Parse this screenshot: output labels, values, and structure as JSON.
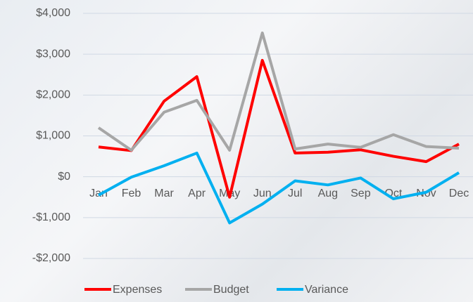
{
  "chart_data": {
    "type": "line",
    "categories": [
      "Jan",
      "Feb",
      "Mar",
      "Apr",
      "May",
      "Jun",
      "Jul",
      "Aug",
      "Sep",
      "Oct",
      "Nov",
      "Dec"
    ],
    "series": [
      {
        "name": "Expenses",
        "color": "#ff0000",
        "values": [
          730,
          640,
          1850,
          2450,
          -500,
          2850,
          580,
          600,
          660,
          500,
          370,
          800
        ]
      },
      {
        "name": "Budget",
        "color": "#a6a6a6",
        "values": [
          1200,
          650,
          1580,
          1870,
          650,
          3520,
          680,
          800,
          720,
          1030,
          740,
          700
        ]
      },
      {
        "name": "Variance",
        "color": "#00b0f0",
        "values": [
          -450,
          -10,
          270,
          580,
          -1130,
          -670,
          -100,
          -200,
          -30,
          -540,
          -380,
          100
        ]
      }
    ],
    "ylim": [
      -2000,
      4000
    ],
    "yticks": [
      {
        "value": -2000,
        "label": "-$2,000"
      },
      {
        "value": -1000,
        "label": "-$1,000"
      },
      {
        "value": 0,
        "label": "$0"
      },
      {
        "value": 1000,
        "label": "$1,000"
      },
      {
        "value": 2000,
        "label": "$2,000"
      },
      {
        "value": 3000,
        "label": "$3,000"
      },
      {
        "value": 4000,
        "label": "$4,000"
      }
    ],
    "grid": true,
    "legend": "bottom"
  }
}
